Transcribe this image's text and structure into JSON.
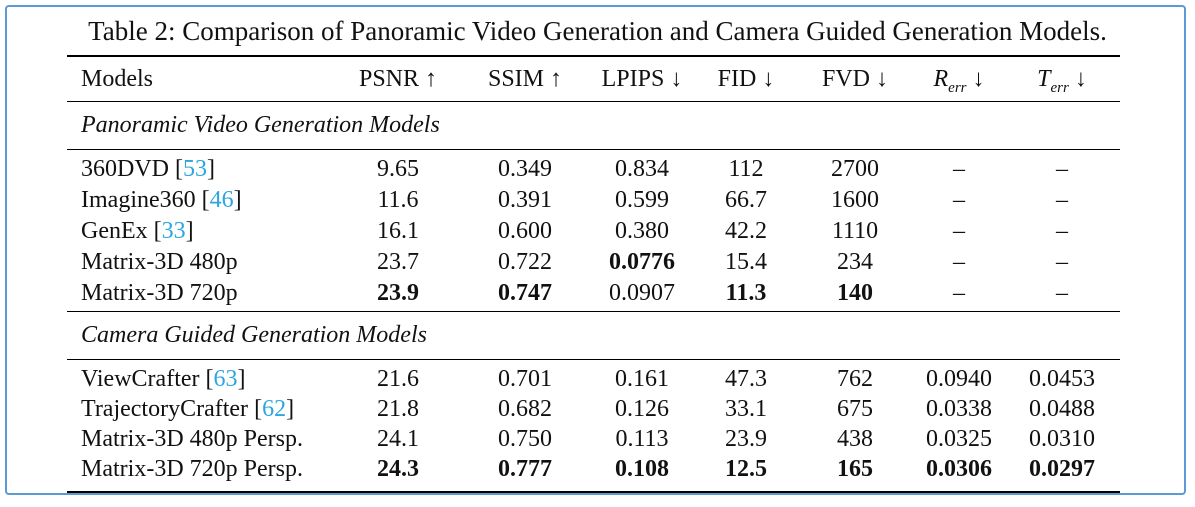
{
  "caption": "Table 2: Comparison of Panoramic Video Generation and Camera Guided Generation Models.",
  "header": {
    "models": "Models",
    "metrics": [
      {
        "label": "PSNR",
        "arrow": "↑"
      },
      {
        "label": "SSIM",
        "arrow": "↑"
      },
      {
        "label": "LPIPS",
        "arrow": "↓"
      },
      {
        "label": "FID",
        "arrow": "↓"
      },
      {
        "label": "FVD",
        "arrow": "↓"
      },
      {
        "label": "R",
        "sub": "err",
        "arrow": "↓"
      },
      {
        "label": "T",
        "sub": "err",
        "arrow": "↓"
      }
    ]
  },
  "sections": [
    {
      "title": "Panoramic Video Generation Models",
      "rows": [
        {
          "name": "360DVD",
          "ref": "53",
          "values": [
            "9.65",
            "0.349",
            "0.834",
            "112",
            "2700",
            "–",
            "–"
          ],
          "bold": [
            false,
            false,
            false,
            false,
            false,
            false,
            false
          ]
        },
        {
          "name": "Imagine360",
          "ref": "46",
          "values": [
            "11.6",
            "0.391",
            "0.599",
            "66.7",
            "1600",
            "–",
            "–"
          ],
          "bold": [
            false,
            false,
            false,
            false,
            false,
            false,
            false
          ]
        },
        {
          "name": "GenEx",
          "ref": "33",
          "values": [
            "16.1",
            "0.600",
            "0.380",
            "42.2",
            "1110",
            "–",
            "–"
          ],
          "bold": [
            false,
            false,
            false,
            false,
            false,
            false,
            false
          ]
        },
        {
          "name": "Matrix-3D 480p",
          "ref": "",
          "values": [
            "23.7",
            "0.722",
            "0.0776",
            "15.4",
            "234",
            "–",
            "–"
          ],
          "bold": [
            false,
            false,
            true,
            false,
            false,
            false,
            false
          ]
        },
        {
          "name": "Matrix-3D 720p",
          "ref": "",
          "values": [
            "23.9",
            "0.747",
            "0.0907",
            "11.3",
            "140",
            "–",
            "–"
          ],
          "bold": [
            true,
            true,
            false,
            true,
            true,
            false,
            false
          ]
        }
      ]
    },
    {
      "title": "Camera Guided Generation Models",
      "rows": [
        {
          "name": "ViewCrafter",
          "ref": "63",
          "values": [
            "21.6",
            "0.701",
            "0.161",
            "47.3",
            "762",
            "0.0940",
            "0.0453"
          ],
          "bold": [
            false,
            false,
            false,
            false,
            false,
            false,
            false
          ]
        },
        {
          "name": "TrajectoryCrafter",
          "ref": "62",
          "values": [
            "21.8",
            "0.682",
            "0.126",
            "33.1",
            "675",
            "0.0338",
            "0.0488"
          ],
          "bold": [
            false,
            false,
            false,
            false,
            false,
            false,
            false
          ]
        },
        {
          "name": "Matrix-3D 480p Persp.",
          "ref": "",
          "values": [
            "24.1",
            "0.750",
            "0.113",
            "23.9",
            "438",
            "0.0325",
            "0.0310"
          ],
          "bold": [
            false,
            false,
            false,
            false,
            false,
            false,
            false
          ]
        },
        {
          "name": "Matrix-3D 720p Persp.",
          "ref": "",
          "values": [
            "24.3",
            "0.777",
            "0.108",
            "12.5",
            "165",
            "0.0306",
            "0.0297"
          ],
          "bold": [
            true,
            true,
            true,
            true,
            true,
            true,
            true
          ]
        }
      ]
    }
  ]
}
